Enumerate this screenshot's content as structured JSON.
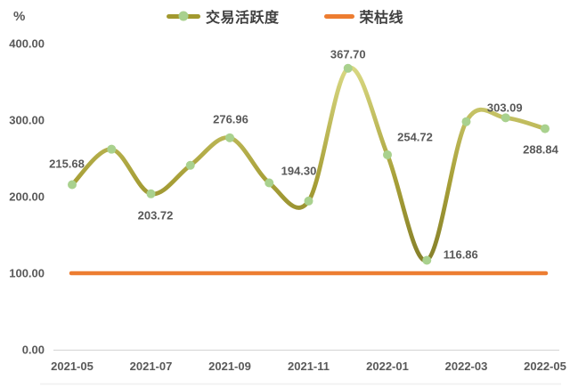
{
  "unit": "%",
  "legend": {
    "items": [
      {
        "label": "交易活跃度"
      },
      {
        "label": "荣枯线"
      }
    ]
  },
  "chart_data": {
    "type": "line",
    "title": "",
    "xlabel": "",
    "ylabel": "%",
    "ylim": [
      0,
      400
    ],
    "grid": false,
    "legend_position": "top",
    "x": [
      "2021-05",
      "2021-06",
      "2021-07",
      "2021-08",
      "2021-09",
      "2021-10",
      "2021-11",
      "2021-12",
      "2022-01",
      "2022-02",
      "2022-03",
      "2022-04",
      "2022-05"
    ],
    "x_tick_labels": [
      "2021-05",
      "2021-07",
      "2021-09",
      "2021-11",
      "2022-01",
      "2022-03",
      "2022-05"
    ],
    "y_ticks": [
      {
        "label": "400.00",
        "value": 400
      },
      {
        "label": "300.00",
        "value": 300
      },
      {
        "label": "200.00",
        "value": 200
      },
      {
        "label": "100.00",
        "value": 100
      },
      {
        "label": "0.00",
        "value": 0
      }
    ],
    "series": [
      {
        "name": "交易活跃度",
        "type": "smooth-line",
        "values": [
          215.68,
          262,
          203.72,
          241,
          276.96,
          218,
          194.3,
          367.7,
          254.72,
          116.86,
          298,
          303.09,
          288.84
        ],
        "point_labels": [
          "215.68",
          "",
          "203.72",
          "",
          "276.96",
          "",
          "194.30",
          "367.70",
          "254.72",
          "116.86",
          "",
          "303.09",
          "288.84"
        ],
        "line_gradient": [
          "#e3e492",
          "#a79f37",
          "#615e1d"
        ],
        "marker_color": "#a9d18e"
      },
      {
        "name": "荣枯线",
        "type": "horizontal-line",
        "value": 100,
        "color": "#ed7d31"
      }
    ],
    "text_color": "#595959",
    "axis_line_color": "#d9d9d9"
  }
}
